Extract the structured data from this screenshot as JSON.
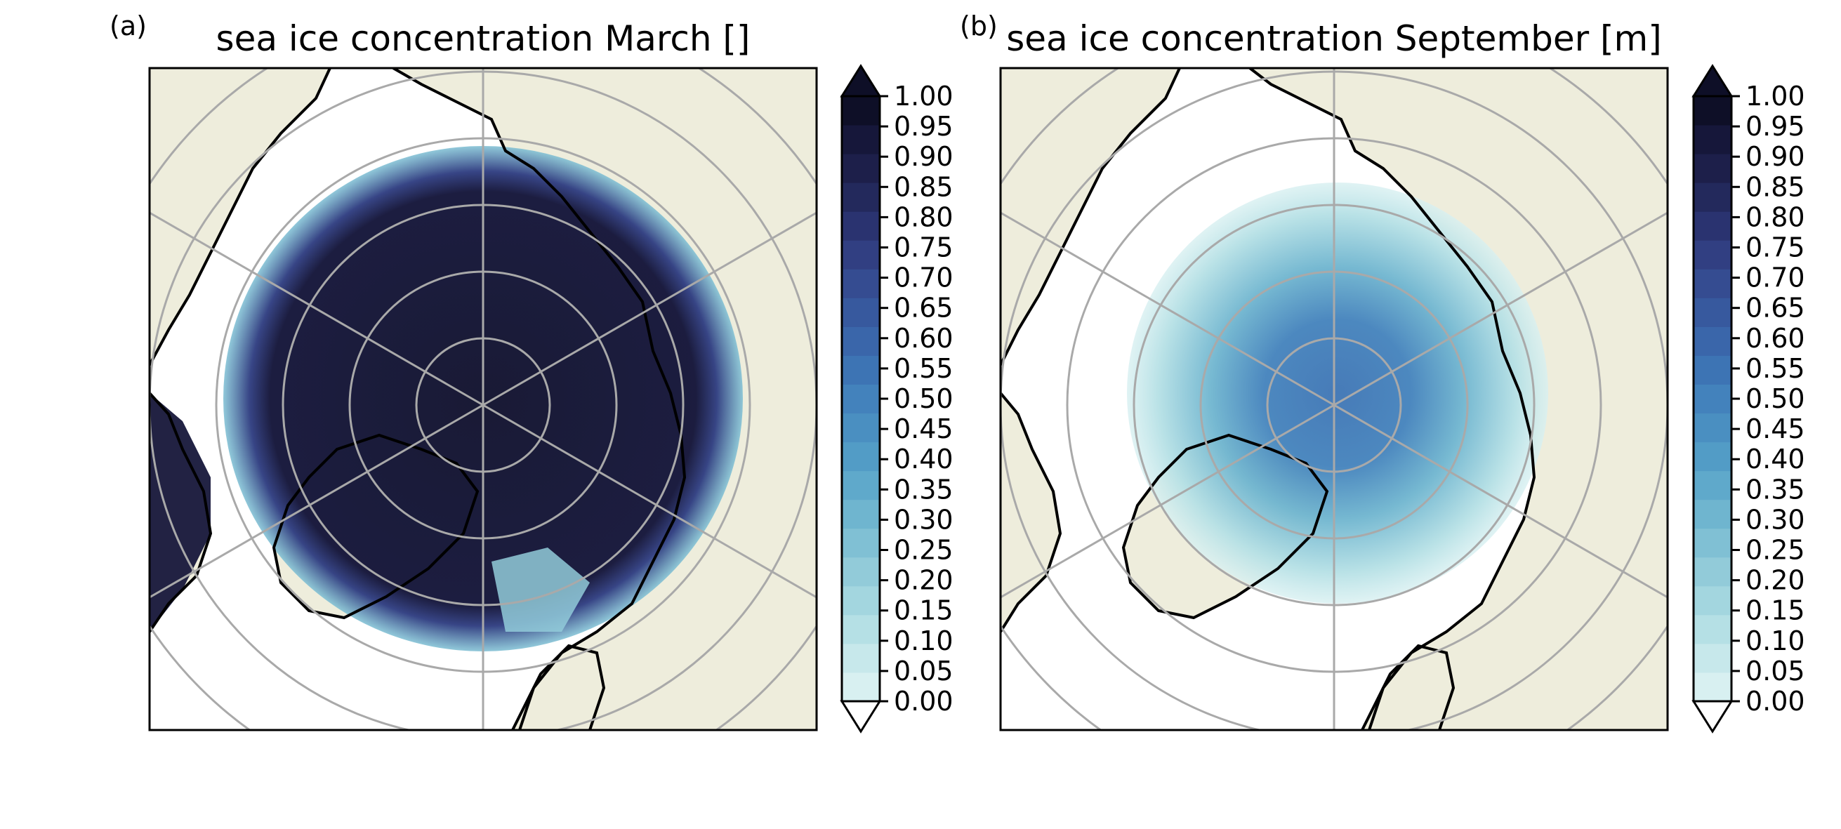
{
  "panels": [
    {
      "label": "(a)",
      "title": "sea ice concentration March []",
      "month": "March",
      "map": {
        "projection": "north-polar-stereographic",
        "land_color": "#EEEDDC",
        "ocean_color": "#FFFFFF",
        "coastline_color": "#000000",
        "graticule_color": "#A9A9A9"
      },
      "colorbar": {
        "ticks": [
          "1.00",
          "0.95",
          "0.90",
          "0.85",
          "0.80",
          "0.75",
          "0.70",
          "0.65",
          "0.60",
          "0.55",
          "0.50",
          "0.45",
          "0.40",
          "0.35",
          "0.30",
          "0.25",
          "0.20",
          "0.15",
          "0.10",
          "0.05",
          "0.00"
        ],
        "extend": "both"
      }
    },
    {
      "label": "(b)",
      "title": "sea ice concentration September [m]",
      "month": "September",
      "map": {
        "projection": "north-polar-stereographic",
        "land_color": "#EEEDDC",
        "ocean_color": "#FFFFFF",
        "coastline_color": "#000000",
        "graticule_color": "#A9A9A9"
      },
      "colorbar": {
        "ticks": [
          "1.00",
          "0.95",
          "0.90",
          "0.85",
          "0.80",
          "0.75",
          "0.70",
          "0.65",
          "0.60",
          "0.55",
          "0.50",
          "0.45",
          "0.40",
          "0.35",
          "0.30",
          "0.25",
          "0.20",
          "0.15",
          "0.10",
          "0.05",
          "0.00"
        ],
        "extend": "both"
      }
    }
  ],
  "colormap": {
    "levels": [
      0.0,
      0.05,
      0.1,
      0.15,
      0.2,
      0.25,
      0.3,
      0.35,
      0.4,
      0.45,
      0.5,
      0.55,
      0.6,
      0.65,
      0.7,
      0.75,
      0.8,
      0.85,
      0.9,
      0.95,
      1.0
    ],
    "colors": [
      "#D8F0F1",
      "#C7E8EB",
      "#B5E0E5",
      "#A3D6DF",
      "#92CBD9",
      "#80C0D4",
      "#6FB5CF",
      "#5FA9CB",
      "#529CC6",
      "#4A8FC1",
      "#4382BC",
      "#3D74B4",
      "#3A66AA",
      "#37599E",
      "#354C91",
      "#313F82",
      "#2A3370",
      "#23295C",
      "#1D1F4A",
      "#16173A",
      "#0E0F27"
    ]
  }
}
